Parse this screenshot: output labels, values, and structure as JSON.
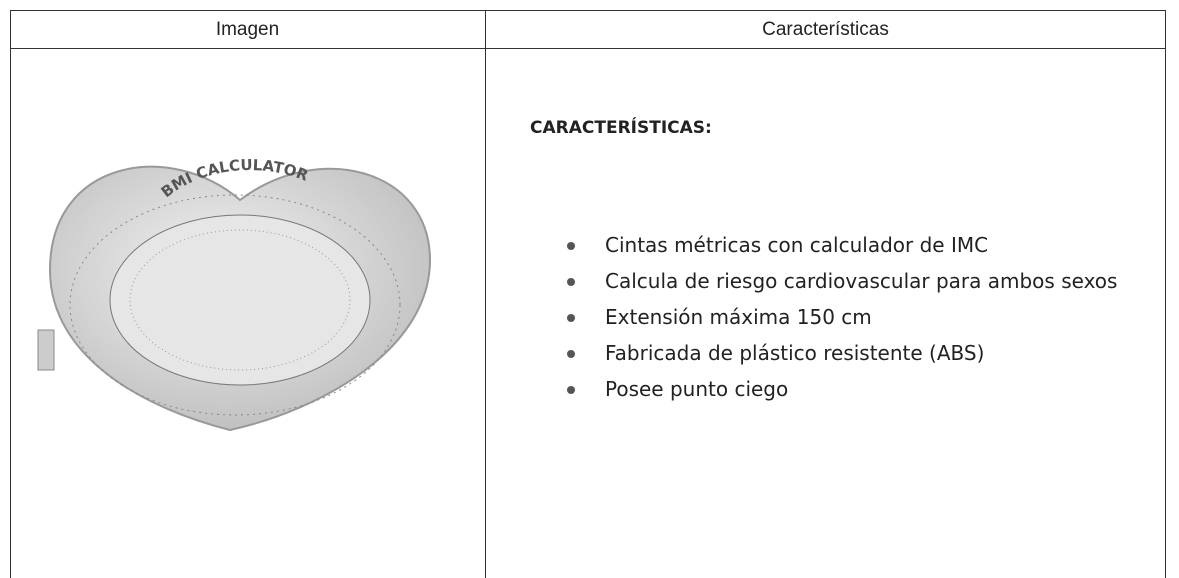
{
  "table": {
    "header": [
      "Imagen",
      "Características"
    ],
    "image": {
      "label": "BMI CALCULATOR"
    },
    "body": {
      "heading": "CARACTERÍSTICAS:",
      "items": [
        "Cintas métricas con calculador de IMC",
        "Calcula de riesgo cardiovascular para ambos sexos",
        "Extensión máxima 150 cm",
        "Fabricada de plástico resistente (ABS)",
        "Posee punto ciego"
      ]
    }
  }
}
